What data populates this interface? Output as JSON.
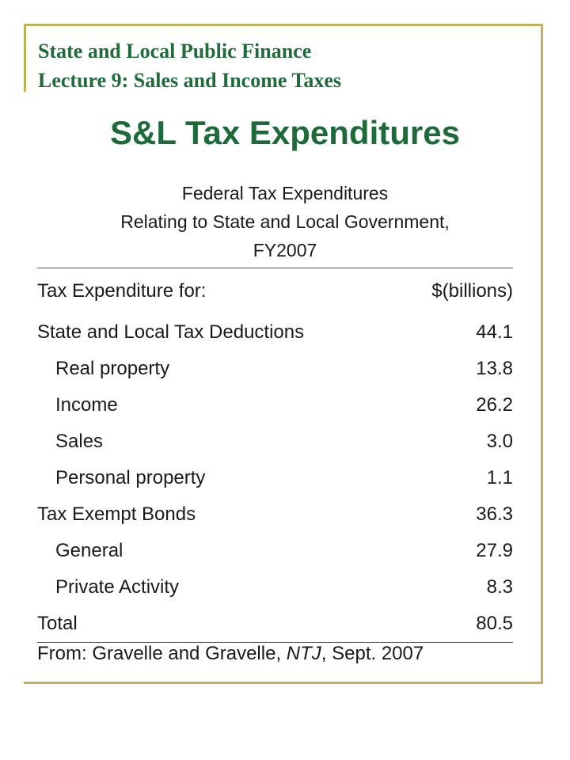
{
  "header": {
    "course": "State and Local Public Finance",
    "lecture": "Lecture 9:  Sales and Income Taxes"
  },
  "slide": {
    "title": "S&L Tax Expenditures"
  },
  "table": {
    "caption_line1": "Federal Tax Expenditures",
    "caption_line2": "Relating to State and Local Government,",
    "caption_line3": "FY2007",
    "header": {
      "label": "Tax Expenditure for:",
      "value": "$(billions)"
    },
    "rows": [
      {
        "label": "State and Local Tax Deductions",
        "value": "44.1"
      },
      {
        "label": "Real property",
        "value": "13.8"
      },
      {
        "label": "Income",
        "value": "26.2"
      },
      {
        "label": "Sales",
        "value": "3.0"
      },
      {
        "label": "Personal property",
        "value": "1.1"
      },
      {
        "label": "Tax Exempt Bonds",
        "value": "36.3"
      },
      {
        "label": "General",
        "value": "27.9"
      },
      {
        "label": "Private Activity",
        "value": "8.3"
      },
      {
        "label": "Total",
        "value": "80.5"
      }
    ]
  },
  "source": {
    "prefix": "From: Gravelle and Gravelle, ",
    "journal": "NTJ",
    "suffix": ", Sept. 2007"
  },
  "colors": {
    "title_green": "#1e6b3a",
    "border_gold": "#c8ae5a"
  }
}
